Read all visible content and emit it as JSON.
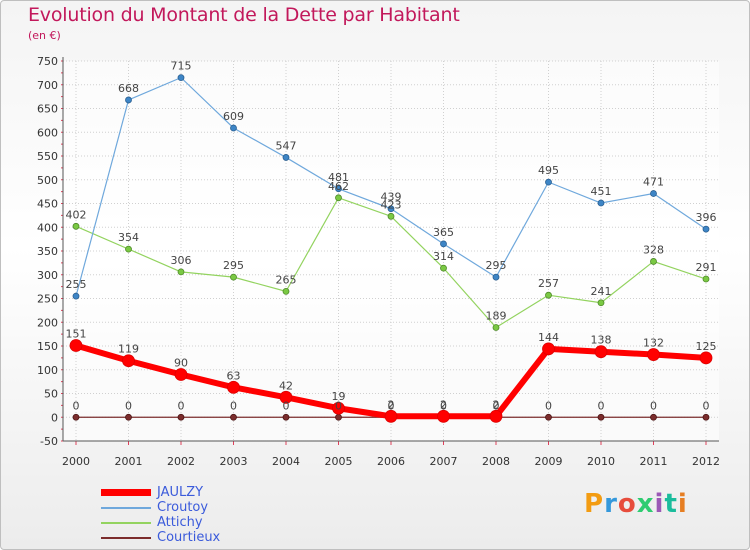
{
  "chart_data": {
    "type": "line",
    "title": "Evolution du Montant de la Dette par Habitant",
    "subtitle": "(en €)",
    "x": [
      "2000",
      "2001",
      "2002",
      "2003",
      "2004",
      "2005",
      "2006",
      "2007",
      "2008",
      "2009",
      "2010",
      "2011",
      "2012"
    ],
    "ylim": [
      -50,
      750
    ],
    "yticks": [
      -50,
      0,
      50,
      100,
      150,
      200,
      250,
      300,
      350,
      400,
      450,
      500,
      550,
      600,
      650,
      700,
      750
    ],
    "grid": true,
    "legend_position": "bottom-left",
    "series": [
      {
        "name": "JAULZY",
        "values": [
          151,
          119,
          90,
          63,
          42,
          19,
          2,
          2,
          2,
          144,
          138,
          132,
          125
        ],
        "color": "#ff0000"
      },
      {
        "name": "Croutoy",
        "values": [
          255,
          668,
          715,
          609,
          547,
          481,
          439,
          365,
          295,
          495,
          451,
          471,
          396
        ],
        "color": "#6fa8dc"
      },
      {
        "name": "Attichy",
        "values": [
          402,
          354,
          306,
          295,
          265,
          462,
          423,
          314,
          189,
          257,
          241,
          328,
          291
        ],
        "color": "#93d35f"
      },
      {
        "name": "Courtieux",
        "values": [
          0,
          0,
          0,
          0,
          0,
          0,
          0,
          0,
          0,
          0,
          0,
          0,
          0
        ],
        "color": "#7b2c2c"
      }
    ]
  },
  "logo": {
    "text": "Proxiti",
    "colors": [
      "#f39c12",
      "#3498db",
      "#e74c3c",
      "#2ecc71",
      "#9b59b6",
      "#1abc9c",
      "#e67e22"
    ]
  }
}
